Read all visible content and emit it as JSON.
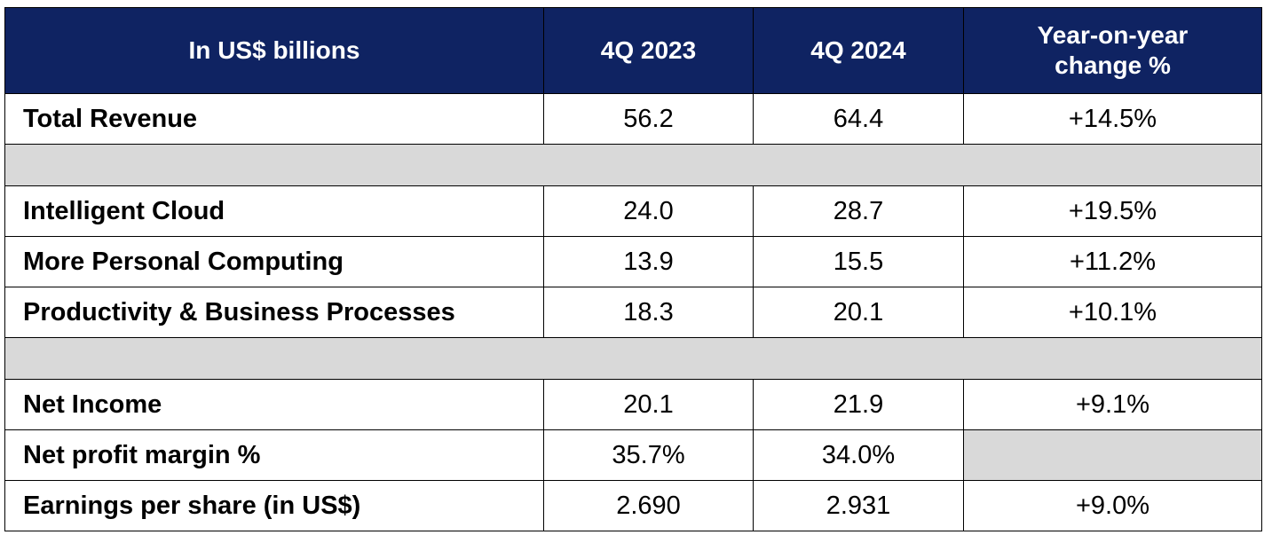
{
  "table": {
    "header": [
      "In US$ billions",
      "4Q 2023",
      "4Q 2024",
      "Year-on-year change %"
    ],
    "rows": [
      [
        "Total Revenue",
        "56.2",
        "64.4",
        "+14.5%"
      ],
      [
        "Intelligent Cloud",
        "24.0",
        "28.7",
        "+19.5%"
      ],
      [
        "More Personal Computing",
        "13.9",
        "15.5",
        "+11.2%"
      ],
      [
        "Productivity & Business Processes",
        "18.3",
        "20.1",
        "+10.1%"
      ],
      [
        "Net Income",
        "20.1",
        "21.9",
        "+9.1%"
      ],
      [
        "Net profit margin %",
        "35.7%",
        "34.0%"
      ],
      [
        "Earnings per share (in US$)",
        "2.690",
        "2.931",
        "+9.0%"
      ]
    ]
  }
}
